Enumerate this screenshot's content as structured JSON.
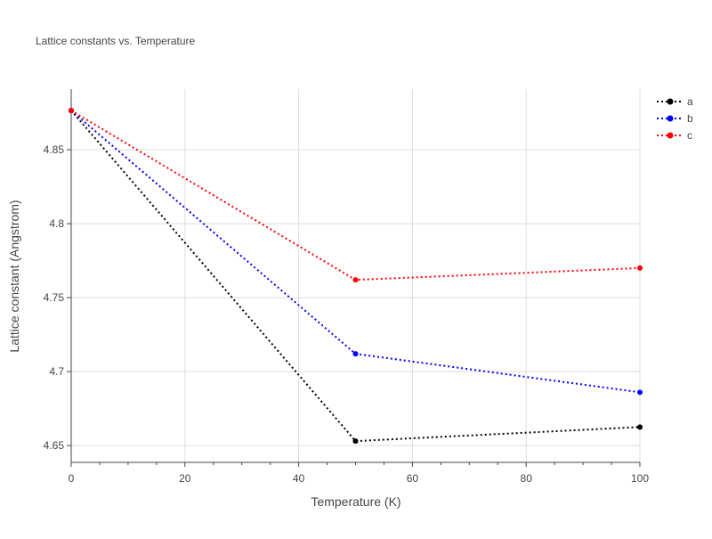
{
  "chart_data": {
    "type": "line",
    "title": "Lattice constants vs. Temperature",
    "xlabel": "Temperature (K)",
    "ylabel": "Lattice constant (Angstrom)",
    "xlim": [
      0,
      100
    ],
    "ylim": [
      4.6386,
      4.891
    ],
    "xticks": [
      0,
      20,
      40,
      60,
      80,
      100
    ],
    "yticks": [
      4.65,
      4.7,
      4.75,
      4.8,
      4.85
    ],
    "ytick_labels": [
      "4.65",
      "4.7",
      "4.75",
      "4.8",
      "4.85"
    ],
    "grid": true,
    "legend_position": "top-right",
    "line_style": "dotted with markers",
    "x": [
      0,
      50,
      100
    ],
    "series": [
      {
        "name": "a",
        "color": "#000000",
        "values": [
          4.8765,
          4.653,
          4.6625
        ]
      },
      {
        "name": "b",
        "color": "#0000ff",
        "values": [
          4.8765,
          4.712,
          4.686
        ]
      },
      {
        "name": "c",
        "color": "#ff0000",
        "values": [
          4.8765,
          4.762,
          4.77
        ]
      }
    ]
  }
}
